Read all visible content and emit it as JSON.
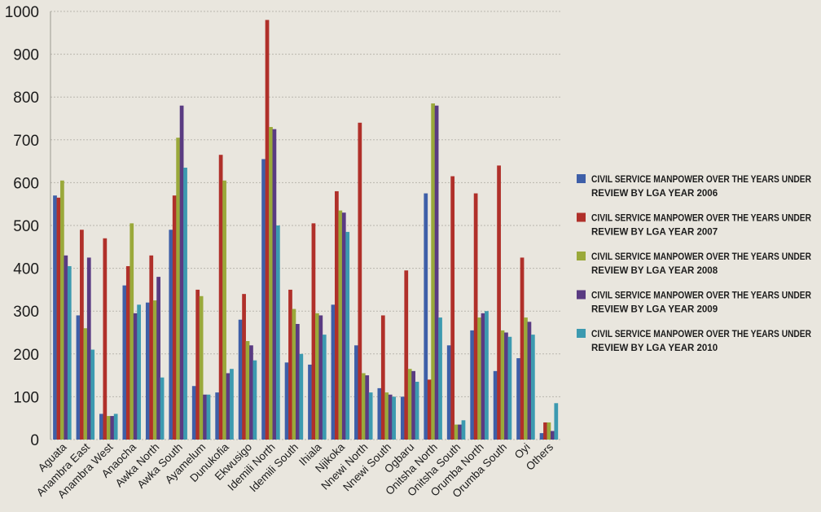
{
  "chart_data": {
    "type": "bar",
    "title": "",
    "xlabel": "",
    "ylabel": "",
    "ylim": [
      0,
      1000
    ],
    "yticks": [
      0,
      100,
      200,
      300,
      400,
      500,
      600,
      700,
      800,
      900,
      1000
    ],
    "grid": true,
    "legend_position": "right",
    "categories": [
      "Aguata",
      "Anambra East",
      "Anambra West",
      "Anaocha",
      "Awka North",
      "Awka South",
      "Ayamelum",
      "Dunukofia",
      "Ekwusigo",
      "Idemili North",
      "Idemili South",
      "Ihiala",
      "Njikoka",
      "Nnewi North",
      "Nnewi South",
      "Ogbaru",
      "Onitsha North",
      "Onitsha South",
      "Orumba North",
      "Orumba South",
      "Oyi",
      "Others"
    ],
    "series": [
      {
        "name": "CIVIL SERVICE MANPOWER OVER THE YEARS UNDER REVIEW BY LGA YEAR 2006",
        "color": "#3e5fa8",
        "values": [
          570,
          290,
          60,
          360,
          320,
          490,
          125,
          110,
          280,
          655,
          180,
          175,
          315,
          220,
          120,
          100,
          575,
          220,
          255,
          160,
          190,
          15
        ]
      },
      {
        "name": "CIVIL SERVICE MANPOWER OVER THE YEARS UNDER REVIEW BY LGA YEAR 2007",
        "color": "#b0302a",
        "values": [
          565,
          490,
          470,
          405,
          430,
          570,
          350,
          665,
          340,
          980,
          350,
          505,
          580,
          740,
          290,
          395,
          140,
          615,
          575,
          640,
          425,
          40
        ]
      },
      {
        "name": "CIVIL SERVICE MANPOWER OVER THE YEARS UNDER REVIEW BY LGA YEAR 2008",
        "color": "#9aa93a",
        "values": [
          605,
          260,
          55,
          505,
          325,
          705,
          335,
          605,
          230,
          730,
          305,
          295,
          535,
          155,
          110,
          165,
          785,
          35,
          285,
          255,
          285,
          40
        ]
      },
      {
        "name": "CIVIL SERVICE MANPOWER OVER THE YEARS UNDER REVIEW BY LGA YEAR 2009",
        "color": "#5a3b82",
        "values": [
          430,
          425,
          55,
          295,
          380,
          780,
          105,
          155,
          220,
          725,
          270,
          290,
          530,
          150,
          105,
          160,
          780,
          35,
          295,
          250,
          275,
          20
        ]
      },
      {
        "name": "CIVIL SERVICE MANPOWER OVER THE YEARS UNDER REVIEW BY LGA YEAR 2010",
        "color": "#3c9ab0",
        "values": [
          405,
          210,
          60,
          315,
          145,
          635,
          105,
          165,
          185,
          500,
          200,
          245,
          485,
          110,
          100,
          135,
          285,
          45,
          300,
          240,
          245,
          85
        ]
      }
    ]
  }
}
